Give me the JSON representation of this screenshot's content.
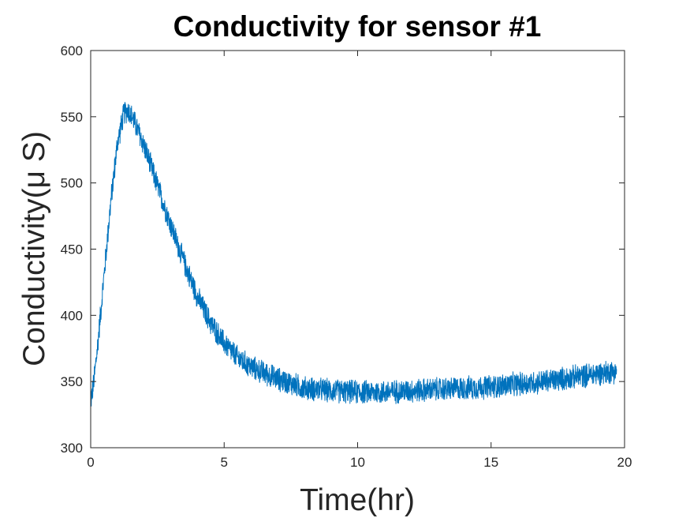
{
  "chart_data": {
    "type": "line",
    "title": "Conductivity for sensor #1",
    "xlabel": "Time(hr)",
    "ylabel": "Conductivity(μ S)",
    "xlim": [
      0,
      20
    ],
    "ylim": [
      300,
      600
    ],
    "xticks": [
      "0",
      "5",
      "10",
      "15",
      "20"
    ],
    "yticks": [
      "300",
      "350",
      "400",
      "450",
      "500",
      "550",
      "600"
    ],
    "grid": false,
    "legend": "none",
    "series": [
      {
        "color": "#0072BD",
        "noise_band": 20,
        "x": [
          0,
          0.1,
          0.25,
          0.5,
          0.75,
          1.0,
          1.25,
          1.4,
          1.6,
          2.0,
          2.5,
          3.0,
          3.5,
          4.0,
          4.5,
          5.0,
          5.5,
          6.0,
          7.0,
          8.0,
          9.0,
          10.0,
          11.0,
          12.0,
          13.0,
          14.0,
          15.0,
          16.0,
          17.0,
          18.0,
          19.0,
          19.7
        ],
        "y": [
          335,
          347,
          375,
          430,
          485,
          530,
          553,
          555,
          548,
          528,
          498,
          468,
          440,
          414,
          394,
          379,
          368,
          361,
          352,
          345,
          343,
          342,
          342,
          343,
          344,
          345,
          346,
          348,
          350,
          353,
          356,
          358
        ]
      }
    ]
  }
}
